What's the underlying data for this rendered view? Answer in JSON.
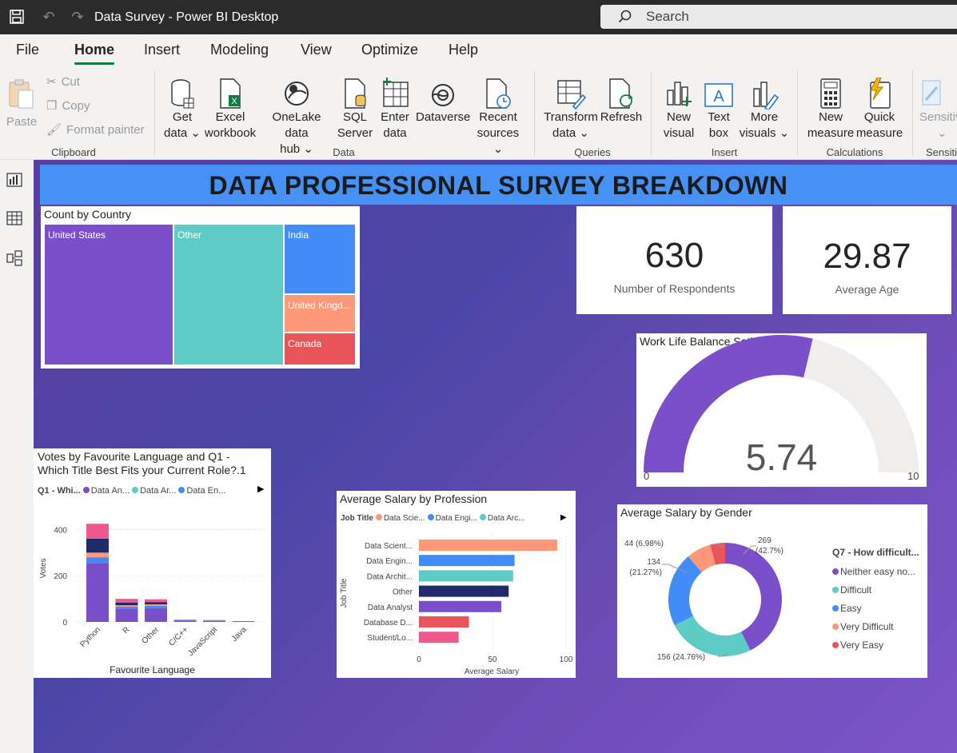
{
  "app": {
    "title": "Data Survey - Power BI Desktop",
    "search_placeholder": "Search"
  },
  "menu": {
    "items": [
      "File",
      "Home",
      "Insert",
      "Modeling",
      "View",
      "Optimize",
      "Help"
    ],
    "active": "Home"
  },
  "ribbon": {
    "clipboard": {
      "paste": "Paste",
      "cut": "Cut",
      "copy": "Copy",
      "format_painter": "Format painter",
      "group": "Clipboard"
    },
    "data": {
      "get_data": [
        "Get",
        "data"
      ],
      "excel": [
        "Excel",
        "workbook"
      ],
      "onelake": [
        "OneLake data",
        "hub"
      ],
      "sql": [
        "SQL",
        "Server"
      ],
      "enter": [
        "Enter",
        "data"
      ],
      "dataverse": "Dataverse",
      "recent": [
        "Recent",
        "sources"
      ],
      "group": "Data"
    },
    "queries": {
      "transform": [
        "Transform",
        "data"
      ],
      "refresh": "Refresh",
      "group": "Queries"
    },
    "insert": {
      "new_visual": [
        "New",
        "visual"
      ],
      "text_box": [
        "Text",
        "box"
      ],
      "more_visuals": [
        "More",
        "visuals"
      ],
      "group": "Insert"
    },
    "calculations": {
      "new_measure": [
        "New",
        "measure"
      ],
      "quick_measure": [
        "Quick",
        "measure"
      ],
      "group": "Calculations"
    },
    "sensitivity": {
      "label": "Sensitiv",
      "group": "Sensitiv"
    }
  },
  "colors": {
    "purple": "#7b4fc9",
    "teal": "#5ecbc4",
    "blue": "#418cf8",
    "salmon": "#fd9878",
    "red": "#e9545a",
    "navy": "#1f2a6a",
    "pink": "#ef5a8e",
    "banner": "#4691f6"
  },
  "report": {
    "title": "DATA PROFESSIONAL SURVEY BREAKDOWN",
    "treemap": {
      "title": "Count by Country",
      "items": [
        "United States",
        "Other",
        "India",
        "United Kingd...",
        "Canada"
      ]
    },
    "kpi_respondents": {
      "value": "630",
      "label": "Number of Respondents"
    },
    "kpi_age": {
      "value": "29.87",
      "label": "Average Age"
    },
    "gauge": {
      "title": "Work Life Balance Satisfaction",
      "value": 5.74,
      "value_label": "5.74",
      "min": "0",
      "max": "10"
    },
    "lang_chart": {
      "title_line1": "Votes by Favourite Language and Q1 -",
      "title_line2": "Which Title Best Fits your Current Role?.1",
      "legend_title": "Q1 - Whi...",
      "legend": [
        "Data An...",
        "Data Ar...",
        "Data En..."
      ],
      "ylabel": "Votes",
      "xlabel": "Favourite Language"
    },
    "salary_prof": {
      "title": "Average Salary by Profession",
      "legend_title": "Job Title",
      "legend": [
        "Data Scie...",
        "Data Engi...",
        "Data Arc..."
      ],
      "ylabel": "Job Title",
      "xlabel": "Average Salary"
    },
    "salary_gender": {
      "title": "Average Salary by Gender",
      "legend_title": "Q7 - How difficult...",
      "legend": [
        "Neither easy no...",
        "Difficult",
        "Easy",
        "Very Difficult",
        "Very Easy"
      ]
    }
  },
  "chart_data": [
    {
      "type": "bar",
      "title": "Votes by Favourite Language and Q1 - Which Title Best Fits your Current Role?.1",
      "stacked": true,
      "categories": [
        "Python",
        "R",
        "Other",
        "C/C++",
        "JavaScript",
        "Java"
      ],
      "series": [
        {
          "name": "Data An...",
          "color": "#7b4fc9",
          "values": [
            255,
            58,
            60,
            6,
            4,
            2
          ]
        },
        {
          "name": "Data En...",
          "color": "#418cf8",
          "values": [
            25,
            8,
            10,
            1,
            1,
            0
          ]
        },
        {
          "name": "Data Ar...",
          "color": "#fd9878",
          "values": [
            20,
            6,
            6,
            1,
            1,
            0
          ]
        },
        {
          "name": "Other",
          "color": "#1f2a6a",
          "values": [
            60,
            12,
            10,
            1,
            1,
            1
          ]
        },
        {
          "name": "Data Scie...",
          "color": "#ef5a8e",
          "values": [
            65,
            16,
            12,
            1,
            1,
            0
          ]
        }
      ],
      "yticks": [
        "0",
        "200",
        "400"
      ],
      "ylim": [
        0,
        450
      ],
      "xlabel": "Favourite Language",
      "ylabel": "Votes"
    },
    {
      "type": "bar",
      "orientation": "horizontal",
      "title": "Average Salary by Profession",
      "categories": [
        "Data Scient...",
        "Data Engin...",
        "Data Archit...",
        "Other",
        "Data Analyst",
        "Database D...",
        "Student/Lo..."
      ],
      "values": [
        94,
        65,
        64,
        61,
        56,
        34,
        27
      ],
      "colors": [
        "#fd9878",
        "#418cf8",
        "#5ecbc4",
        "#1f2a6a",
        "#7b4fc9",
        "#e9545a",
        "#ef5a8e"
      ],
      "xticks": [
        "0",
        "50",
        "100"
      ],
      "xlim": [
        0,
        100
      ],
      "xlabel": "Average Salary",
      "ylabel": "Job Title"
    },
    {
      "type": "pie",
      "donut": true,
      "title": "Average Salary by Gender",
      "labels": [
        "Neither easy no...",
        "Difficult",
        "Easy",
        "Very Difficult",
        "Very Easy"
      ],
      "values": [
        269,
        156,
        134,
        44,
        27
      ],
      "colors": [
        "#7b4fc9",
        "#5ecbc4",
        "#418cf8",
        "#fd9878",
        "#e9545a"
      ],
      "data_labels": [
        "269 (42.7%)",
        "156 (24.76%)",
        "134 (21.27%)",
        "44 (6.98%)",
        ""
      ]
    }
  ]
}
